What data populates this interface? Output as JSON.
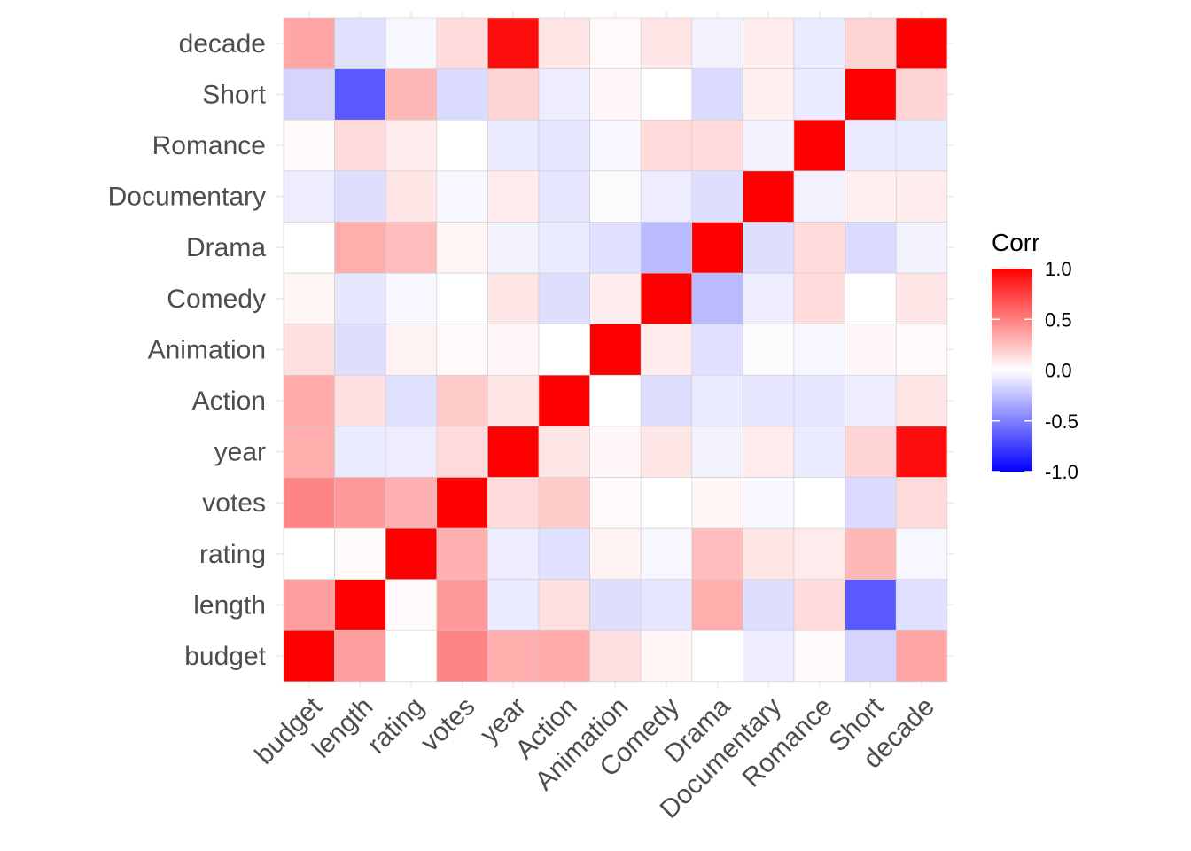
{
  "chart_data": {
    "type": "heatmap",
    "title": "",
    "xlabel": "",
    "ylabel": "",
    "variables": [
      "budget",
      "length",
      "rating",
      "votes",
      "year",
      "Action",
      "Animation",
      "Comedy",
      "Drama",
      "Documentary",
      "Romance",
      "Short",
      "decade"
    ],
    "matrix": [
      [
        1.0,
        0.38,
        0.0,
        0.48,
        0.32,
        0.33,
        0.12,
        0.04,
        0.0,
        -0.07,
        0.02,
        -0.17,
        0.35
      ],
      [
        0.38,
        1.0,
        0.02,
        0.4,
        -0.08,
        0.12,
        -0.13,
        -0.1,
        0.32,
        -0.13,
        0.14,
        -0.65,
        -0.12
      ],
      [
        0.0,
        0.02,
        1.0,
        0.31,
        -0.07,
        -0.12,
        0.05,
        -0.03,
        0.26,
        0.1,
        0.08,
        0.28,
        -0.03
      ],
      [
        0.48,
        0.4,
        0.31,
        1.0,
        0.14,
        0.2,
        0.02,
        0.0,
        0.04,
        -0.03,
        0.0,
        -0.14,
        0.14
      ],
      [
        0.32,
        -0.08,
        -0.07,
        0.14,
        1.0,
        0.1,
        0.03,
        0.1,
        -0.05,
        0.08,
        -0.08,
        0.17,
        0.95
      ],
      [
        0.33,
        0.12,
        -0.12,
        0.2,
        0.1,
        1.0,
        0.0,
        -0.13,
        -0.08,
        -0.1,
        -0.1,
        -0.07,
        0.1
      ],
      [
        0.12,
        -0.13,
        0.05,
        0.02,
        0.03,
        0.0,
        1.0,
        0.07,
        -0.12,
        -0.01,
        -0.03,
        0.03,
        0.02
      ],
      [
        0.04,
        -0.1,
        -0.03,
        0.0,
        0.1,
        -0.13,
        0.07,
        1.0,
        -0.27,
        -0.07,
        0.14,
        0.0,
        0.1
      ],
      [
        0.0,
        0.32,
        0.26,
        0.04,
        -0.05,
        -0.08,
        -0.12,
        -0.27,
        1.0,
        -0.13,
        0.14,
        -0.14,
        -0.05
      ],
      [
        -0.07,
        -0.13,
        0.1,
        -0.03,
        0.08,
        -0.1,
        -0.01,
        -0.07,
        -0.13,
        1.0,
        -0.05,
        0.06,
        0.07
      ],
      [
        0.02,
        0.14,
        0.08,
        0.0,
        -0.08,
        -0.1,
        -0.03,
        0.14,
        0.14,
        -0.05,
        1.0,
        -0.08,
        -0.08
      ],
      [
        -0.17,
        -0.65,
        0.28,
        -0.14,
        0.17,
        -0.07,
        0.03,
        0.0,
        -0.14,
        0.06,
        -0.08,
        1.0,
        0.17
      ],
      [
        0.35,
        -0.12,
        -0.03,
        0.14,
        0.95,
        0.1,
        0.02,
        0.1,
        -0.05,
        0.07,
        -0.08,
        0.17,
        1.0
      ]
    ],
    "scale": {
      "min": -1.0,
      "max": 1.0,
      "low_color": "#0000ff",
      "mid_color": "#ffffff",
      "high_color": "#ff0000"
    },
    "legend": {
      "title": "Corr",
      "position": "right",
      "ticks": [
        1.0,
        0.5,
        0.0,
        -0.5,
        -1.0
      ],
      "tick_labels": [
        "1.0",
        "0.5",
        "0.0",
        "-0.5",
        "-1.0"
      ]
    },
    "grid": true
  }
}
